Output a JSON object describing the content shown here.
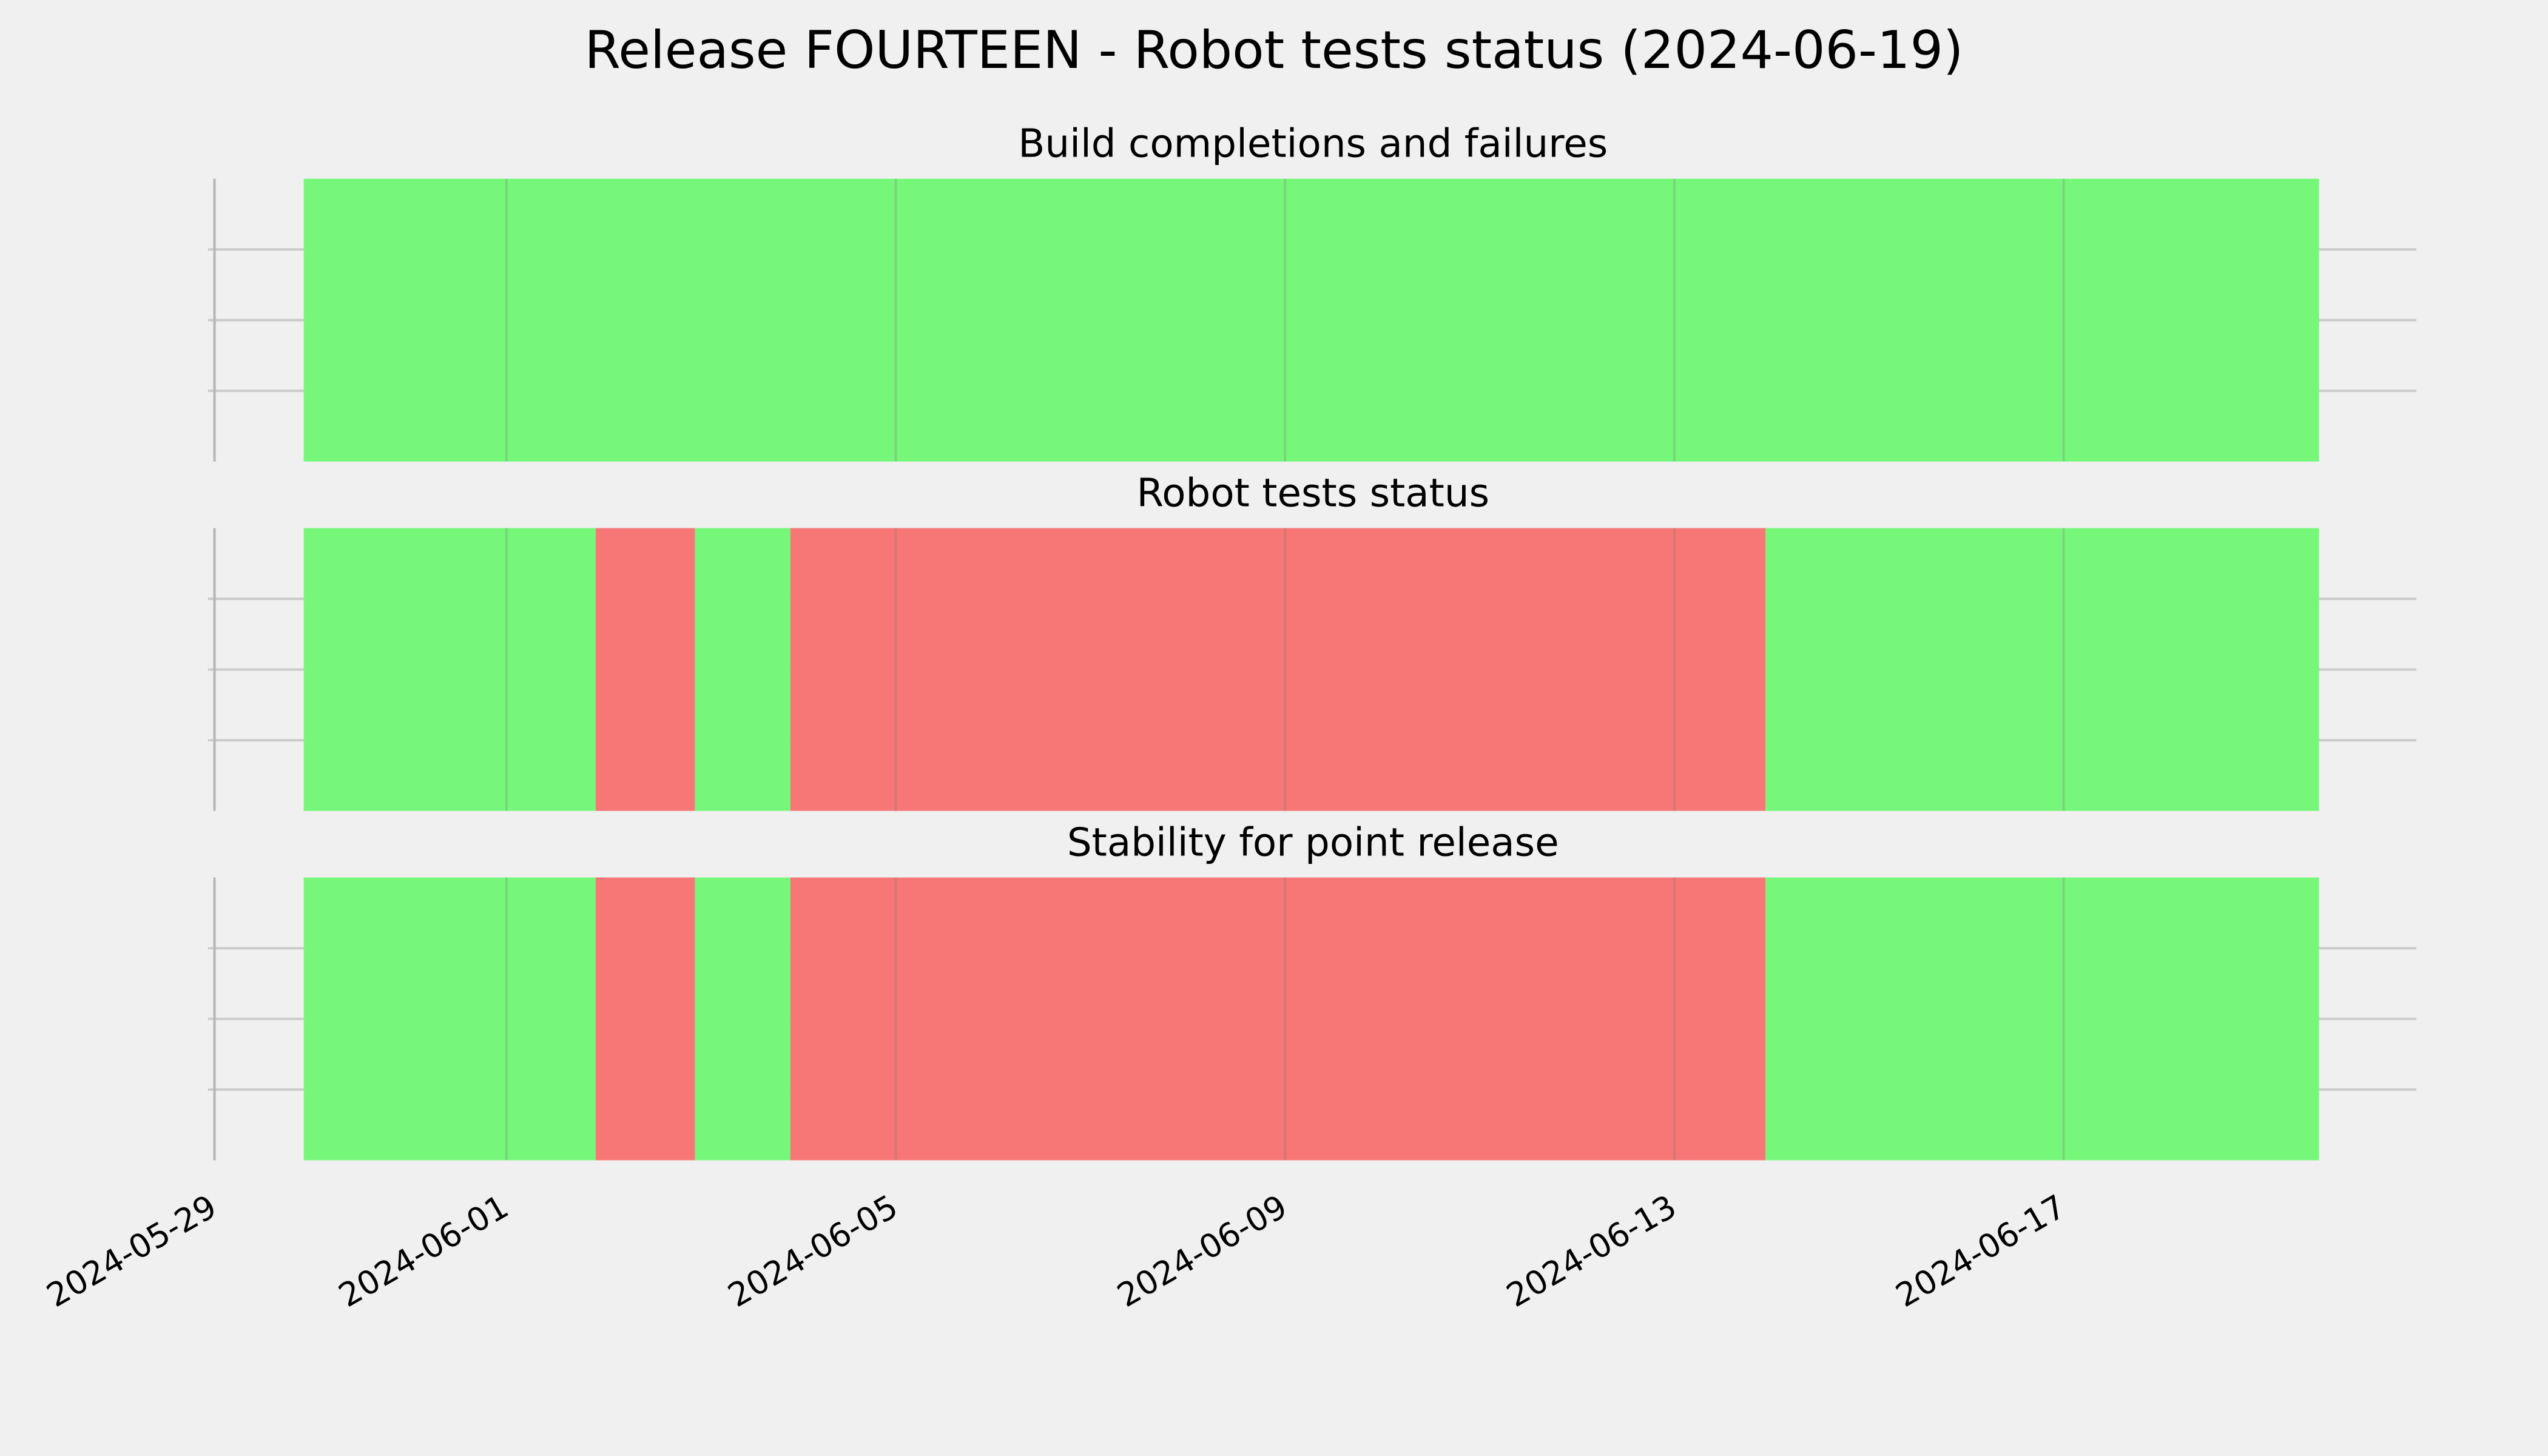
{
  "title": "Release FOURTEEN - Robot tests status (2024-06-19)",
  "chart_data": [
    {
      "type": "span",
      "title": "Build completions and failures",
      "xlim": [
        "2024-05-29",
        "2024-06-20T15:00"
      ],
      "xticks": [
        "2024-05-29",
        "2024-06-01",
        "2024-06-05",
        "2024-06-09",
        "2024-06-13",
        "2024-06-17"
      ],
      "ylim": [
        0,
        1
      ],
      "yticks": [
        0.25,
        0.5,
        0.75
      ],
      "grid": true,
      "spans": [
        {
          "start": "2024-05-29T22:00",
          "end": "2024-06-19T15:00",
          "color": "#76f77a"
        }
      ]
    },
    {
      "type": "span",
      "title": "Robot tests status",
      "xlim": [
        "2024-05-29",
        "2024-06-20T15:00"
      ],
      "xticks": [
        "2024-05-29",
        "2024-06-01",
        "2024-06-05",
        "2024-06-09",
        "2024-06-13",
        "2024-06-17"
      ],
      "ylim": [
        0,
        1
      ],
      "yticks": [
        0.25,
        0.5,
        0.75
      ],
      "grid": true,
      "spans": [
        {
          "start": "2024-05-29T22:00",
          "end": "2024-06-01T22:00",
          "color": "#76f77a"
        },
        {
          "start": "2024-06-01T22:00",
          "end": "2024-06-02T22:30",
          "color": "#f77676"
        },
        {
          "start": "2024-06-02T22:30",
          "end": "2024-06-03T22:00",
          "color": "#76f77a"
        },
        {
          "start": "2024-06-03T22:00",
          "end": "2024-06-13T22:30",
          "color": "#f77676"
        },
        {
          "start": "2024-06-13T22:30",
          "end": "2024-06-19T15:00",
          "color": "#76f77a"
        }
      ]
    },
    {
      "type": "span",
      "title": "Stability for point release",
      "xlim": [
        "2024-05-29",
        "2024-06-20T15:00"
      ],
      "xticks": [
        "2024-05-29",
        "2024-06-01",
        "2024-06-05",
        "2024-06-09",
        "2024-06-13",
        "2024-06-17"
      ],
      "ylim": [
        0,
        1
      ],
      "yticks": [
        0.25,
        0.5,
        0.75
      ],
      "grid": true,
      "spans": [
        {
          "start": "2024-05-29T22:00",
          "end": "2024-06-01T22:00",
          "color": "#76f77a"
        },
        {
          "start": "2024-06-01T22:00",
          "end": "2024-06-02T22:30",
          "color": "#f77676"
        },
        {
          "start": "2024-06-02T22:30",
          "end": "2024-06-03T22:00",
          "color": "#76f77a"
        },
        {
          "start": "2024-06-03T22:00",
          "end": "2024-06-13T22:30",
          "color": "#f77676"
        },
        {
          "start": "2024-06-13T22:30",
          "end": "2024-06-19T15:00",
          "color": "#76f77a"
        }
      ]
    }
  ]
}
